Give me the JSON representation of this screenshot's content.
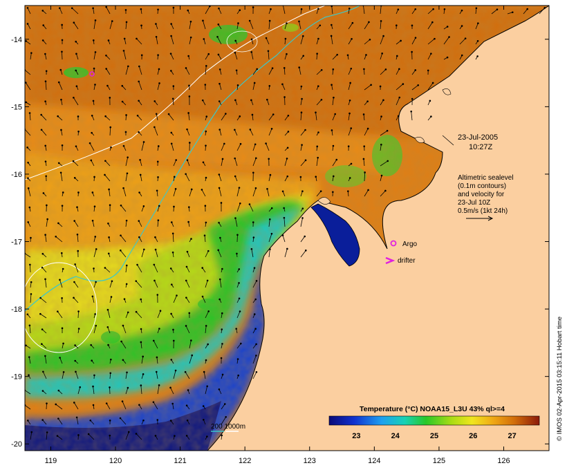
{
  "map": {
    "lon_range": [
      118.6,
      126.7
    ],
    "lat_range": [
      -20.1,
      -13.5
    ],
    "x_ticks": [
      119,
      120,
      121,
      122,
      123,
      124,
      125,
      126
    ],
    "y_ticks": [
      -14,
      -15,
      -16,
      -17,
      -18,
      -19,
      -20
    ],
    "x_tick_labels": [
      "119",
      "120",
      "121",
      "122",
      "123",
      "124",
      "125",
      "126"
    ],
    "y_tick_labels": [
      "-14",
      "-15",
      "-16",
      "-17",
      "-18",
      "-19",
      "-20"
    ],
    "land_color": "#fbcfa0",
    "coast_color": "#000000",
    "contour_200m_color": "#3cc8c8",
    "contour_1000m_color": "#ffffff"
  },
  "annotations": {
    "date": "23-Jul-2005",
    "time": "10:27Z",
    "altimetry_lines": [
      "Altimetric sealevel",
      "(0.1m contours)",
      "and velocity for",
      "23-Jul 10Z",
      "0.5m/s (1kt 24h)"
    ],
    "argo_label": "Argo",
    "drifter_label": "drifter",
    "bathymetry_label": "200  1000m"
  },
  "colorbar": {
    "title": "Temperature (°C) NOAA15_L3U 43% ql>=4",
    "range": [
      22.3,
      27.7
    ],
    "ticks": [
      "23",
      "24",
      "25",
      "26",
      "27"
    ],
    "tick_values": [
      23,
      24,
      25,
      26,
      27
    ]
  },
  "credit": "© IMOS 02-Apr-2015 03:15:11 Hobart time",
  "markers": {
    "argo_color": "#e020e0",
    "drifter_color": "#e020e0"
  }
}
